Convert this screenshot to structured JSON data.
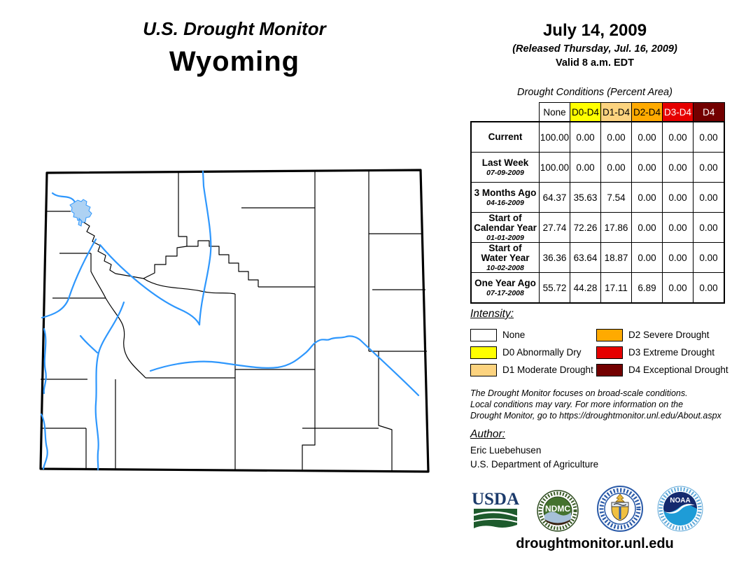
{
  "header": {
    "title": "U.S. Drought Monitor",
    "state": "Wyoming",
    "date": "July 14, 2009",
    "released": "(Released Thursday, Jul. 16, 2009)",
    "valid": "Valid 8 a.m. EDT"
  },
  "table": {
    "caption": "Drought Conditions (Percent Area)",
    "columns": [
      {
        "label": "None",
        "bg": "#FFFFFF",
        "fg": "#000000"
      },
      {
        "label": "D0-D4",
        "bg": "#FFFF00",
        "fg": "#000000"
      },
      {
        "label": "D1-D4",
        "bg": "#FCD37F",
        "fg": "#000000"
      },
      {
        "label": "D2-D4",
        "bg": "#FFAA00",
        "fg": "#000000"
      },
      {
        "label": "D3-D4",
        "bg": "#E60000",
        "fg": "#FFFFFF"
      },
      {
        "label": "D4",
        "bg": "#730000",
        "fg": "#FFFFFF"
      }
    ],
    "rows": [
      {
        "label": "Current",
        "date": "",
        "values": [
          "100.00",
          "0.00",
          "0.00",
          "0.00",
          "0.00",
          "0.00"
        ]
      },
      {
        "label": "Last Week",
        "date": "07-09-2009",
        "values": [
          "100.00",
          "0.00",
          "0.00",
          "0.00",
          "0.00",
          "0.00"
        ]
      },
      {
        "label": "3 Months Ago",
        "date": "04-16-2009",
        "values": [
          "64.37",
          "35.63",
          "7.54",
          "0.00",
          "0.00",
          "0.00"
        ]
      },
      {
        "label": "Start of\nCalendar Year",
        "date": "01-01-2009",
        "values": [
          "27.74",
          "72.26",
          "17.86",
          "0.00",
          "0.00",
          "0.00"
        ]
      },
      {
        "label": "Start of\nWater Year",
        "date": "10-02-2008",
        "values": [
          "36.36",
          "63.64",
          "18.87",
          "0.00",
          "0.00",
          "0.00"
        ]
      },
      {
        "label": "One Year Ago",
        "date": "07-17-2008",
        "values": [
          "55.72",
          "44.28",
          "17.11",
          "6.89",
          "0.00",
          "0.00"
        ]
      }
    ]
  },
  "legend": {
    "title": "Intensity:",
    "left_items": [
      {
        "label": "None",
        "color": "#FFFFFF"
      },
      {
        "label": "D0 Abnormally Dry",
        "color": "#FFFF00"
      },
      {
        "label": "D1 Moderate Drought",
        "color": "#FCD37F"
      }
    ],
    "right_items": [
      {
        "label": "D2 Severe Drought",
        "color": "#FFAA00"
      },
      {
        "label": "D3 Extreme Drought",
        "color": "#E60000"
      },
      {
        "label": "D4 Exceptional Drought",
        "color": "#730000"
      }
    ]
  },
  "disclaimer": {
    "lines": [
      "The Drought Monitor focuses on broad-scale conditions.",
      "Local conditions may vary. For more information on the",
      "Drought Monitor, go to https://droughtmonitor.unl.edu/About.aspx"
    ]
  },
  "author": {
    "title": "Author:",
    "name": "Eric Luebehusen",
    "org": "U.S. Department of Agriculture"
  },
  "logos": {
    "usda_text": "USDA",
    "ndmc_text": "NDMC",
    "noaa_text": "NOAA"
  },
  "footer": {
    "url": "droughtmonitor.unl.edu"
  },
  "map": {
    "river_color": "#2e97fd",
    "lake_color": "#aed2f3",
    "border_color": "#000000",
    "fill_color": "#ffffff"
  }
}
